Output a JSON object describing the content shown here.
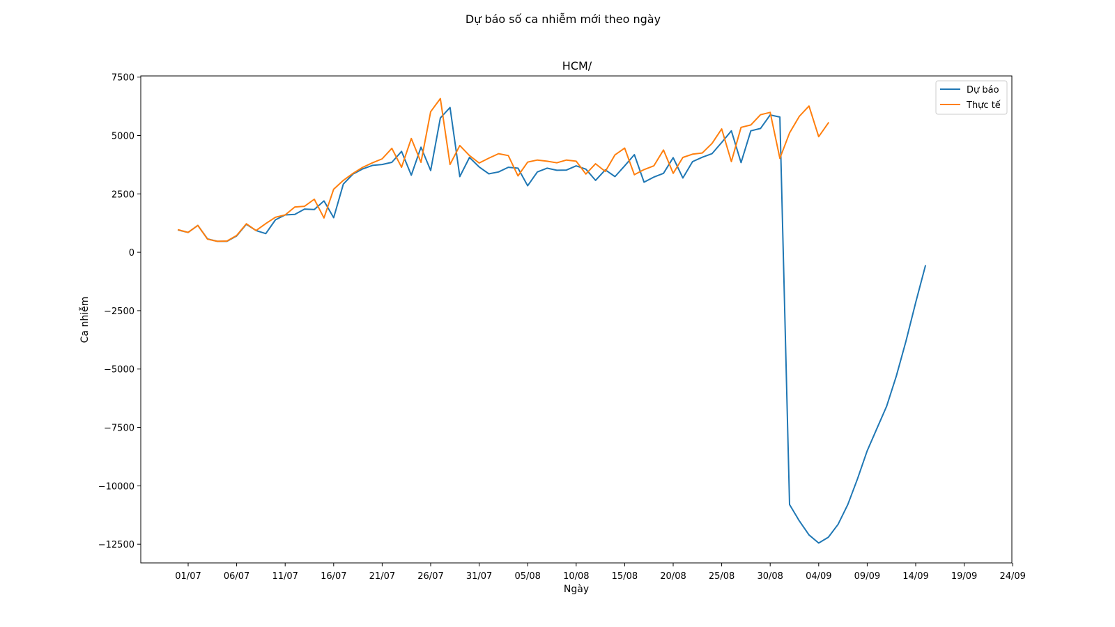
{
  "figure_title": "Dự báo số ca nhiễm mới theo ngày",
  "chart_data": {
    "type": "line",
    "title": "HCM/",
    "xlabel": "Ngày",
    "ylabel": "Ca nhiễm",
    "x_start": "2021-06-26",
    "x_tick_labels": [
      "01/07",
      "06/07",
      "11/07",
      "16/07",
      "21/07",
      "26/07",
      "31/07",
      "05/08",
      "10/08",
      "15/08",
      "20/08",
      "25/08",
      "30/08",
      "04/09",
      "09/09",
      "14/09",
      "19/09",
      "24/09"
    ],
    "y_ticks": [
      7500,
      5000,
      2500,
      0,
      -2500,
      -5000,
      -7500,
      -10000,
      -12500
    ],
    "y_tick_labels": [
      "7500",
      "5000",
      "2500",
      "0",
      "−2500",
      "−5000",
      "−7500",
      "−10000",
      "−12500"
    ],
    "ylim": [
      -13300,
      7550
    ],
    "grid": false,
    "legend_position": "top-right",
    "series": [
      {
        "name": "Dự báo",
        "color": "#1f77b4",
        "start_date": "2021-06-30",
        "values": [
          950,
          850,
          1150,
          570,
          470,
          470,
          700,
          1200,
          930,
          800,
          1390,
          1600,
          1620,
          1850,
          1830,
          2200,
          1480,
          2920,
          3350,
          3570,
          3720,
          3760,
          3850,
          4320,
          3300,
          4500,
          3500,
          5750,
          6200,
          3240,
          4060,
          3650,
          3360,
          3440,
          3640,
          3600,
          2850,
          3440,
          3600,
          3510,
          3520,
          3700,
          3560,
          3080,
          3530,
          3240,
          3700,
          4180,
          3000,
          3220,
          3380,
          4050,
          3180,
          3880,
          4070,
          4220,
          4700,
          5200,
          3840,
          5200,
          5300,
          5880,
          5790,
          -10800,
          -11500,
          -12100,
          -12450,
          -12200,
          -11650,
          -10800,
          -9700,
          -8500,
          -7550,
          -6600,
          -5300,
          -3800,
          -2150,
          -580
        ]
      },
      {
        "name": "Thực tế",
        "color": "#ff7f0e",
        "start_date": "2021-06-30",
        "values": [
          960,
          850,
          1150,
          560,
          470,
          480,
          720,
          1220,
          930,
          1230,
          1500,
          1600,
          1940,
          1970,
          2270,
          1470,
          2700,
          3080,
          3380,
          3640,
          3830,
          4000,
          4450,
          3640,
          4870,
          3850,
          6020,
          6580,
          3760,
          4570,
          4140,
          3820,
          4030,
          4220,
          4140,
          3270,
          3860,
          3950,
          3900,
          3830,
          3950,
          3900,
          3350,
          3790,
          3460,
          4170,
          4460,
          3320,
          3540,
          3700,
          4380,
          3380,
          4060,
          4200,
          4250,
          4660,
          5280,
          3880,
          5350,
          5450,
          5890,
          5990,
          4020,
          5110,
          5820,
          6260,
          4950,
          5540
        ]
      }
    ]
  }
}
